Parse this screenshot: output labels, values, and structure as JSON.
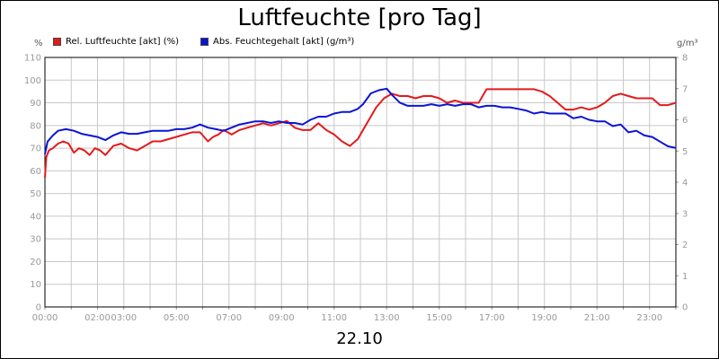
{
  "chart_data": {
    "type": "line",
    "title": "Luftfeuchte [pro Tag]",
    "date_label": "22.10",
    "y_left_unit": "%",
    "y_right_unit": "g/m³",
    "ylim_left": [
      0,
      110
    ],
    "ylim_right": [
      0,
      8
    ],
    "yticks_left": [
      "0",
      "10",
      "20",
      "30",
      "40",
      "50",
      "60",
      "70",
      "80",
      "90",
      "100",
      "110"
    ],
    "yticks_right": [
      "0",
      "1",
      "2",
      "3",
      "4",
      "5",
      "6",
      "7",
      "8"
    ],
    "x_range_hours": [
      0,
      24
    ],
    "x_tick_labels": [
      {
        "hour": 0,
        "label": "00:00"
      },
      {
        "hour": 2,
        "label": "02:00"
      },
      {
        "hour": 3,
        "label": "03:00"
      },
      {
        "hour": 5,
        "label": "05:00"
      },
      {
        "hour": 7,
        "label": "07:00"
      },
      {
        "hour": 9,
        "label": "09:00"
      },
      {
        "hour": 11,
        "label": "11:00"
      },
      {
        "hour": 13,
        "label": "13:00"
      },
      {
        "hour": 15,
        "label": "15:00"
      },
      {
        "hour": 17,
        "label": "17:00"
      },
      {
        "hour": 19,
        "label": "19:00"
      },
      {
        "hour": 21,
        "label": "21:00"
      },
      {
        "hour": 23,
        "label": "23:00"
      }
    ],
    "grid": true,
    "legend_position": "top-left",
    "series": [
      {
        "name": "Rel. Luftfeuchte [akt] (%)",
        "color": "#e31a1c",
        "axis": "left",
        "x": [
          0.0,
          0.05,
          0.15,
          0.3,
          0.5,
          0.7,
          0.9,
          1.1,
          1.3,
          1.5,
          1.7,
          1.9,
          2.1,
          2.3,
          2.6,
          2.9,
          3.2,
          3.5,
          3.8,
          4.1,
          4.4,
          4.7,
          5.0,
          5.3,
          5.6,
          5.9,
          6.2,
          6.4,
          6.6,
          6.8,
          7.1,
          7.4,
          7.7,
          8.0,
          8.3,
          8.6,
          8.9,
          9.2,
          9.5,
          9.8,
          10.1,
          10.4,
          10.7,
          11.0,
          11.3,
          11.6,
          11.9,
          12.1,
          12.3,
          12.6,
          12.9,
          13.2,
          13.5,
          13.8,
          14.1,
          14.4,
          14.7,
          15.0,
          15.3,
          15.6,
          15.9,
          16.2,
          16.5,
          16.8,
          17.1,
          17.4,
          17.7,
          18.0,
          18.3,
          18.6,
          18.9,
          19.2,
          19.5,
          19.8,
          20.1,
          20.4,
          20.7,
          21.0,
          21.3,
          21.6,
          21.9,
          22.2,
          22.5,
          22.8,
          23.1,
          23.4,
          23.7,
          24.0
        ],
        "values": [
          57,
          66,
          69,
          70,
          72,
          73,
          72,
          68,
          70,
          69,
          67,
          70,
          69,
          67,
          71,
          72,
          70,
          69,
          71,
          73,
          73,
          74,
          75,
          76,
          77,
          77,
          73,
          75,
          76,
          78,
          76,
          78,
          79,
          80,
          81,
          80,
          81,
          82,
          79,
          78,
          78,
          81,
          78,
          76,
          73,
          71,
          74,
          78,
          82,
          88,
          92,
          94,
          93,
          93,
          92,
          93,
          93,
          92,
          90,
          91,
          90,
          90,
          90,
          96,
          96,
          96,
          96,
          96,
          96,
          96,
          95,
          93,
          90,
          87,
          87,
          88,
          87,
          88,
          90,
          93,
          94,
          93,
          92,
          92,
          92,
          89,
          89,
          90
        ]
      },
      {
        "name": "Abs. Feuchtegehalt [akt] (g/m³)",
        "color": "#0a14d4",
        "axis": "right",
        "x": [
          0.0,
          0.1,
          0.3,
          0.5,
          0.8,
          1.1,
          1.4,
          1.7,
          2.0,
          2.3,
          2.6,
          2.9,
          3.2,
          3.5,
          3.8,
          4.1,
          4.4,
          4.7,
          5.0,
          5.3,
          5.6,
          5.9,
          6.2,
          6.5,
          6.8,
          7.1,
          7.4,
          7.7,
          8.0,
          8.3,
          8.6,
          8.9,
          9.2,
          9.5,
          9.8,
          10.1,
          10.4,
          10.7,
          11.0,
          11.3,
          11.6,
          11.9,
          12.1,
          12.4,
          12.7,
          13.0,
          13.2,
          13.5,
          13.8,
          14.1,
          14.4,
          14.7,
          15.0,
          15.3,
          15.6,
          15.9,
          16.2,
          16.5,
          16.8,
          17.1,
          17.4,
          17.7,
          18.0,
          18.3,
          18.6,
          18.9,
          19.2,
          19.5,
          19.8,
          20.1,
          20.4,
          20.7,
          21.0,
          21.3,
          21.6,
          21.9,
          22.2,
          22.5,
          22.8,
          23.1,
          23.4,
          23.7,
          24.0
        ],
        "values": [
          4.9,
          5.3,
          5.5,
          5.65,
          5.7,
          5.65,
          5.55,
          5.5,
          5.45,
          5.35,
          5.5,
          5.6,
          5.55,
          5.55,
          5.6,
          5.65,
          5.65,
          5.65,
          5.7,
          5.7,
          5.75,
          5.85,
          5.75,
          5.7,
          5.65,
          5.75,
          5.85,
          5.9,
          5.95,
          5.95,
          5.9,
          5.95,
          5.9,
          5.9,
          5.85,
          6.0,
          6.1,
          6.1,
          6.2,
          6.25,
          6.25,
          6.35,
          6.5,
          6.85,
          6.95,
          7.0,
          6.8,
          6.55,
          6.45,
          6.45,
          6.45,
          6.5,
          6.45,
          6.5,
          6.45,
          6.5,
          6.5,
          6.4,
          6.45,
          6.45,
          6.4,
          6.4,
          6.35,
          6.3,
          6.2,
          6.25,
          6.2,
          6.2,
          6.2,
          6.05,
          6.1,
          6.0,
          5.95,
          5.95,
          5.8,
          5.85,
          5.6,
          5.65,
          5.5,
          5.45,
          5.3,
          5.15,
          5.1
        ]
      }
    ]
  }
}
